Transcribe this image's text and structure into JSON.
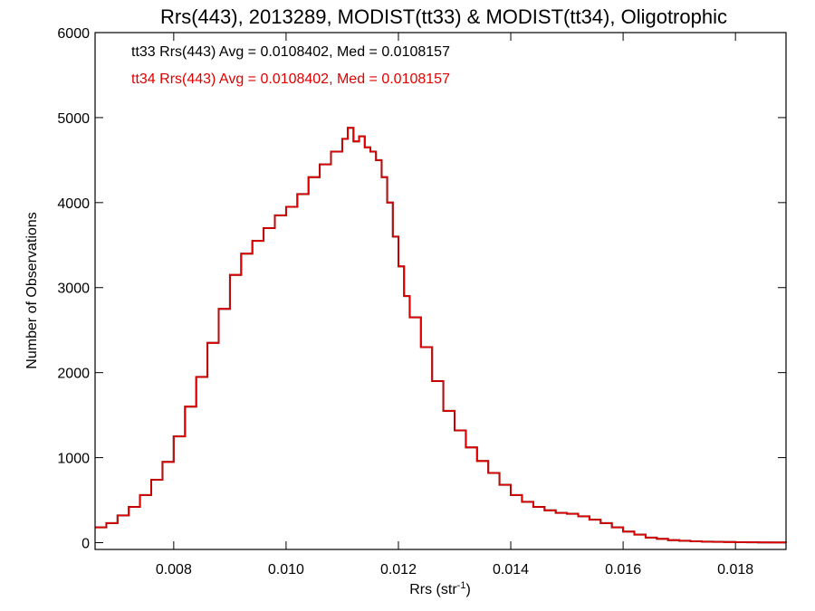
{
  "chart_data": {
    "type": "line",
    "title": "Rrs(443), 2013289, MODIST(tt33) & MODIST(tt34), Oligotrophic",
    "xlabel": "Rrs (str",
    "xlabel_sup": "-1",
    "xlabel_close": ")",
    "ylabel": "Number of Observations",
    "xlim": [
      0.0066,
      0.0189
    ],
    "ylim": [
      -80,
      6000
    ],
    "x_ticks": [
      0.008,
      0.01,
      0.012,
      0.014,
      0.016,
      0.018
    ],
    "x_tick_labels": [
      "0.008",
      "0.010",
      "0.012",
      "0.014",
      "0.016",
      "0.018"
    ],
    "y_ticks": [
      0,
      1000,
      2000,
      3000,
      4000,
      5000,
      6000
    ],
    "y_tick_labels": [
      "0",
      "1000",
      "2000",
      "3000",
      "4000",
      "5000",
      "6000"
    ],
    "grid": false,
    "annotations": [
      {
        "text": "tt33 Rrs(443) Avg = 0.0108402, Med = 0.0108157",
        "color": "#000000"
      },
      {
        "text": "tt34 Rrs(443) Avg = 0.0108402, Med = 0.0108157",
        "color": "#e00000"
      }
    ],
    "series": [
      {
        "color": "#000000",
        "step": true,
        "x": [
          0.0066,
          0.0068,
          0.007,
          0.0072,
          0.0074,
          0.0076,
          0.0078,
          0.008,
          0.0082,
          0.0084,
          0.0086,
          0.0088,
          0.009,
          0.0092,
          0.0094,
          0.0096,
          0.0098,
          0.01,
          0.0102,
          0.0104,
          0.0106,
          0.0108,
          0.011,
          0.0111,
          0.0112,
          0.0113,
          0.0114,
          0.0115,
          0.0116,
          0.0117,
          0.0118,
          0.0119,
          0.012,
          0.0121,
          0.0122,
          0.0124,
          0.0126,
          0.0128,
          0.013,
          0.0132,
          0.0134,
          0.0136,
          0.0138,
          0.014,
          0.0142,
          0.0144,
          0.0146,
          0.0148,
          0.015,
          0.0152,
          0.0154,
          0.0156,
          0.0158,
          0.016,
          0.0162,
          0.0164,
          0.0166,
          0.0168,
          0.017,
          0.0172,
          0.0174,
          0.0176,
          0.0178,
          0.018,
          0.0182,
          0.0184,
          0.0186,
          0.0189
        ],
        "y": [
          180,
          230,
          320,
          420,
          560,
          740,
          950,
          1250,
          1600,
          1950,
          2350,
          2750,
          3150,
          3400,
          3550,
          3700,
          3850,
          3950,
          4100,
          4300,
          4450,
          4600,
          4750,
          4880,
          4720,
          4780,
          4650,
          4600,
          4500,
          4300,
          4000,
          3600,
          3250,
          2900,
          2650,
          2300,
          1900,
          1550,
          1320,
          1120,
          960,
          820,
          680,
          560,
          480,
          420,
          380,
          350,
          340,
          310,
          270,
          230,
          180,
          130,
          95,
          60,
          45,
          30,
          22,
          16,
          12,
          9,
          7,
          5,
          4,
          3,
          2,
          0
        ]
      },
      {
        "color": "#e00000",
        "step": true,
        "x": [
          0.0066,
          0.0068,
          0.007,
          0.0072,
          0.0074,
          0.0076,
          0.0078,
          0.008,
          0.0082,
          0.0084,
          0.0086,
          0.0088,
          0.009,
          0.0092,
          0.0094,
          0.0096,
          0.0098,
          0.01,
          0.0102,
          0.0104,
          0.0106,
          0.0108,
          0.011,
          0.0111,
          0.0112,
          0.0113,
          0.0114,
          0.0115,
          0.0116,
          0.0117,
          0.0118,
          0.0119,
          0.012,
          0.0121,
          0.0122,
          0.0124,
          0.0126,
          0.0128,
          0.013,
          0.0132,
          0.0134,
          0.0136,
          0.0138,
          0.014,
          0.0142,
          0.0144,
          0.0146,
          0.0148,
          0.015,
          0.0152,
          0.0154,
          0.0156,
          0.0158,
          0.016,
          0.0162,
          0.0164,
          0.0166,
          0.0168,
          0.017,
          0.0172,
          0.0174,
          0.0176,
          0.0178,
          0.018,
          0.0182,
          0.0184,
          0.0186,
          0.0189
        ],
        "y": [
          180,
          230,
          320,
          420,
          560,
          740,
          950,
          1250,
          1600,
          1950,
          2350,
          2750,
          3150,
          3400,
          3550,
          3700,
          3850,
          3950,
          4100,
          4300,
          4450,
          4600,
          4750,
          4880,
          4720,
          4780,
          4650,
          4600,
          4500,
          4300,
          4000,
          3600,
          3250,
          2900,
          2650,
          2300,
          1900,
          1550,
          1320,
          1120,
          960,
          820,
          680,
          560,
          480,
          420,
          380,
          350,
          340,
          310,
          270,
          230,
          180,
          130,
          95,
          60,
          45,
          30,
          22,
          16,
          12,
          9,
          7,
          5,
          4,
          3,
          2,
          0
        ]
      }
    ]
  }
}
